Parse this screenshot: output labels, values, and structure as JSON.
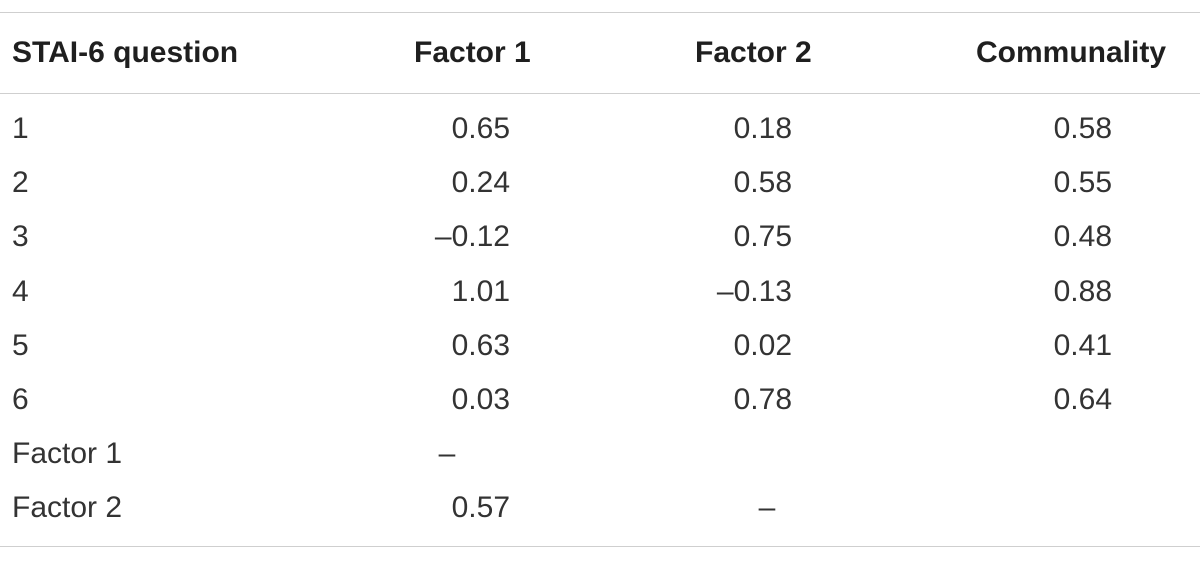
{
  "table": {
    "headers": [
      "STAI-6 question",
      "Factor 1",
      "Factor 2",
      "Communality"
    ],
    "rows": [
      [
        "1",
        "0.65",
        "0.18",
        "0.58"
      ],
      [
        "2",
        "0.24",
        "0.58",
        "0.55"
      ],
      [
        "3",
        "–0.12",
        "0.75",
        "0.48"
      ],
      [
        "4",
        "1.01",
        "–0.13",
        "0.88"
      ],
      [
        "5",
        "0.63",
        "0.02",
        "0.41"
      ],
      [
        "6",
        "0.03",
        "0.78",
        "0.64"
      ],
      [
        "Factor 1",
        "–",
        "",
        ""
      ],
      [
        "Factor 2",
        "0.57",
        "–",
        ""
      ]
    ]
  }
}
